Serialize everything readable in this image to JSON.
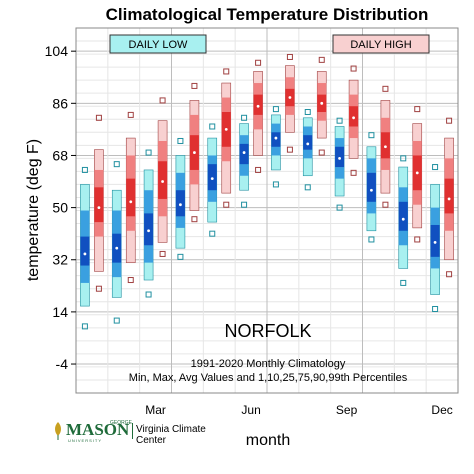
{
  "chart_data": {
    "type": "box",
    "title": "Climatological Temperature Distribution",
    "xlabel": "month",
    "ylabel": "temperature (deg F)",
    "ylim": [
      -14,
      112
    ],
    "yticks": [
      -4,
      14,
      32,
      50,
      68,
      86,
      104
    ],
    "month_ticks": [
      {
        "month": 3,
        "label": "Mar"
      },
      {
        "month": 6,
        "label": "Jun"
      },
      {
        "month": 9,
        "label": "Sep"
      },
      {
        "month": 12,
        "label": "Dec"
      }
    ],
    "station": "NORFOLK",
    "note_line1": "1991-2020 Monthly Climatology",
    "note_line2": "Min, Max, Avg Values and 1,10,25,75,90,99th Percentiles",
    "legend": [
      {
        "label": "DAILY LOW",
        "color": "#a8f0f0"
      },
      {
        "label": "DAILY HIGH",
        "color": "#f8d0d0"
      }
    ],
    "grid": true,
    "series": [
      {
        "name": "DAILY LOW",
        "colors": {
          "outer": "#a8f0f0",
          "inner": "#3aa0e0",
          "mid": "#1050c0",
          "marker": "#2090a0"
        },
        "data": [
          {
            "month": 1,
            "min": 9,
            "p1": 16,
            "p10": 24,
            "p25": 30,
            "avg": 34,
            "p75": 40,
            "p90": 49,
            "p99": 58,
            "max": 63
          },
          {
            "month": 2,
            "min": 11,
            "p1": 19,
            "p10": 26,
            "p25": 31,
            "avg": 36,
            "p75": 41,
            "p90": 49,
            "p99": 56,
            "max": 65
          },
          {
            "month": 3,
            "min": 20,
            "p1": 25,
            "p10": 31,
            "p25": 37,
            "avg": 42,
            "p75": 48,
            "p90": 56,
            "p99": 63,
            "max": 69
          },
          {
            "month": 4,
            "min": 33,
            "p1": 36,
            "p10": 43,
            "p25": 47,
            "avg": 51,
            "p75": 56,
            "p90": 62,
            "p99": 68,
            "max": 73
          },
          {
            "month": 5,
            "min": 41,
            "p1": 45,
            "p10": 52,
            "p25": 56,
            "avg": 60,
            "p75": 65,
            "p90": 68,
            "p99": 74,
            "max": 78
          },
          {
            "month": 6,
            "min": 51,
            "p1": 56,
            "p10": 61,
            "p25": 65,
            "avg": 69,
            "p75": 72,
            "p90": 75,
            "p99": 79,
            "max": 81
          },
          {
            "month": 7,
            "min": 58,
            "p1": 63,
            "p10": 68,
            "p25": 71,
            "avg": 74,
            "p75": 76,
            "p90": 79,
            "p99": 82,
            "max": 84
          },
          {
            "month": 8,
            "min": 57,
            "p1": 61,
            "p10": 67,
            "p25": 70,
            "avg": 72,
            "p75": 75,
            "p90": 78,
            "p99": 81,
            "max": 83
          },
          {
            "month": 9,
            "min": 50,
            "p1": 54,
            "p10": 60,
            "p25": 64,
            "avg": 67,
            "p75": 71,
            "p90": 74,
            "p99": 78,
            "max": 80
          },
          {
            "month": 10,
            "min": 39,
            "p1": 42,
            "p10": 48,
            "p25": 52,
            "avg": 56,
            "p75": 62,
            "p90": 67,
            "p99": 71,
            "max": 75
          },
          {
            "month": 11,
            "min": 24,
            "p1": 29,
            "p10": 37,
            "p25": 42,
            "avg": 46,
            "p75": 52,
            "p90": 57,
            "p99": 64,
            "max": 67
          },
          {
            "month": 12,
            "min": 15,
            "p1": 20,
            "p10": 29,
            "p25": 33,
            "avg": 38,
            "p75": 44,
            "p90": 50,
            "p99": 58,
            "max": 64
          }
        ]
      },
      {
        "name": "DAILY HIGH",
        "colors": {
          "outer": "#f8d0d0",
          "inner": "#f08080",
          "mid": "#e03030",
          "marker": "#a04040"
        },
        "data": [
          {
            "month": 1,
            "min": 22,
            "p1": 28,
            "p10": 40,
            "p25": 45,
            "avg": 50,
            "p75": 57,
            "p90": 63,
            "p99": 70,
            "max": 81
          },
          {
            "month": 2,
            "min": 25,
            "p1": 31,
            "p10": 42,
            "p25": 47,
            "avg": 52,
            "p75": 60,
            "p90": 68,
            "p99": 74,
            "max": 82
          },
          {
            "month": 3,
            "min": 34,
            "p1": 38,
            "p10": 47,
            "p25": 53,
            "avg": 59,
            "p75": 66,
            "p90": 73,
            "p99": 80,
            "max": 87
          },
          {
            "month": 4,
            "min": 46,
            "p1": 49,
            "p10": 58,
            "p25": 63,
            "avg": 69,
            "p75": 75,
            "p90": 82,
            "p99": 87,
            "max": 92
          },
          {
            "month": 5,
            "min": 51,
            "p1": 55,
            "p10": 66,
            "p25": 71,
            "avg": 77,
            "p75": 83,
            "p90": 88,
            "p99": 93,
            "max": 97
          },
          {
            "month": 6,
            "min": 63,
            "p1": 68,
            "p10": 77,
            "p25": 82,
            "avg": 85,
            "p75": 89,
            "p90": 93,
            "p99": 97,
            "max": 100
          },
          {
            "month": 7,
            "min": 70,
            "p1": 76,
            "p10": 82,
            "p25": 85,
            "avg": 88,
            "p75": 91,
            "p90": 95,
            "p99": 99,
            "max": 102
          },
          {
            "month": 8,
            "min": 69,
            "p1": 74,
            "p10": 80,
            "p25": 83,
            "avg": 86,
            "p75": 89,
            "p90": 93,
            "p99": 97,
            "max": 101
          },
          {
            "month": 9,
            "min": 62,
            "p1": 67,
            "p10": 74,
            "p25": 78,
            "avg": 81,
            "p75": 85,
            "p90": 89,
            "p99": 94,
            "max": 98
          },
          {
            "month": 10,
            "min": 51,
            "p1": 55,
            "p10": 63,
            "p25": 67,
            "avg": 71,
            "p75": 76,
            "p90": 81,
            "p99": 87,
            "max": 91
          },
          {
            "month": 11,
            "min": 39,
            "p1": 43,
            "p10": 51,
            "p25": 56,
            "avg": 62,
            "p75": 68,
            "p90": 73,
            "p99": 79,
            "max": 84
          },
          {
            "month": 12,
            "min": 27,
            "p1": 32,
            "p10": 42,
            "p25": 48,
            "avg": 53,
            "p75": 60,
            "p90": 67,
            "p99": 74,
            "max": 80
          }
        ]
      }
    ]
  },
  "logo": {
    "mason_text": "MASON",
    "george_text": "GEORGE",
    "university_text": "UNIVERSITY",
    "org_text": "Virginia Climate Center"
  }
}
